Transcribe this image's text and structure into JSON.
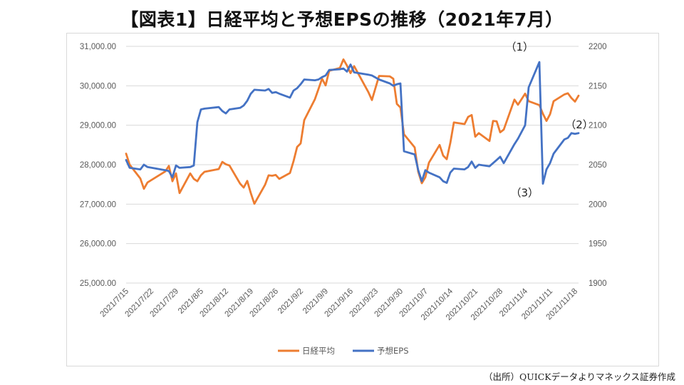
{
  "title": "【図表1】日経平均と予想EPSの推移（2021年7月）",
  "source": "（出所）QUICKデータよりマネックス証券作成",
  "chart_data": {
    "type": "line",
    "y_left": {
      "min": 25000,
      "max": 31000,
      "ticks": [
        "25,000.00",
        "26,000.00",
        "27,000.00",
        "28,000.00",
        "29,000.00",
        "30,000.00",
        "31,000.00"
      ]
    },
    "y_right": {
      "min": 1900,
      "max": 2200,
      "ticks": [
        "1900",
        "1950",
        "2000",
        "2050",
        "2100",
        "2150",
        "2200"
      ]
    },
    "x_ticks": [
      "2021/7/15",
      "2021/7/22",
      "2021/7/29",
      "2021/8/5",
      "2021/8/12",
      "2021/8/19",
      "2021/8/26",
      "2021/9/2",
      "2021/9/9",
      "2021/9/16",
      "2021/9/23",
      "2021/9/30",
      "2021/10/7",
      "2021/10/14",
      "2021/10/21",
      "2021/10/28",
      "2021/11/4",
      "2021/11/11",
      "2021/11/18"
    ],
    "grid": "horizontal",
    "legend_position": "bottom",
    "colors": {
      "nikkei": "#ED7D31",
      "eps": "#4472C4",
      "grid": "#d9d9d9",
      "text": "#595959"
    },
    "series": [
      {
        "name": "日経平均",
        "axis": "left",
        "points": [
          [
            "2021/7/15",
            28280
          ],
          [
            "2021/7/16",
            28000
          ],
          [
            "2021/7/19",
            27650
          ],
          [
            "2021/7/20",
            27390
          ],
          [
            "2021/7/21",
            27550
          ],
          [
            "2021/7/26",
            27830
          ],
          [
            "2021/7/27",
            27970
          ],
          [
            "2021/7/28",
            27580
          ],
          [
            "2021/7/29",
            27780
          ],
          [
            "2021/7/30",
            27280
          ],
          [
            "2021/8/2",
            27780
          ],
          [
            "2021/8/3",
            27640
          ],
          [
            "2021/8/4",
            27580
          ],
          [
            "2021/8/5",
            27730
          ],
          [
            "2021/8/6",
            27820
          ],
          [
            "2021/8/10",
            27890
          ],
          [
            "2021/8/11",
            28070
          ],
          [
            "2021/8/12",
            28010
          ],
          [
            "2021/8/13",
            27980
          ],
          [
            "2021/8/16",
            27520
          ],
          [
            "2021/8/17",
            27420
          ],
          [
            "2021/8/18",
            27590
          ],
          [
            "2021/8/19",
            27280
          ],
          [
            "2021/8/20",
            27010
          ],
          [
            "2021/8/23",
            27490
          ],
          [
            "2021/8/24",
            27730
          ],
          [
            "2021/8/25",
            27720
          ],
          [
            "2021/8/26",
            27740
          ],
          [
            "2021/8/27",
            27640
          ],
          [
            "2021/8/30",
            27790
          ],
          [
            "2021/8/31",
            28090
          ],
          [
            "2021/9/1",
            28450
          ],
          [
            "2021/9/2",
            28540
          ],
          [
            "2021/9/3",
            29130
          ],
          [
            "2021/9/6",
            29660
          ],
          [
            "2021/9/7",
            29920
          ],
          [
            "2021/9/8",
            30180
          ],
          [
            "2021/9/9",
            30010
          ],
          [
            "2021/9/10",
            30380
          ],
          [
            "2021/9/13",
            30450
          ],
          [
            "2021/9/14",
            30670
          ],
          [
            "2021/9/15",
            30510
          ],
          [
            "2021/9/16",
            30320
          ],
          [
            "2021/9/17",
            30500
          ],
          [
            "2021/9/21",
            29840
          ],
          [
            "2021/9/22",
            29640
          ],
          [
            "2021/9/24",
            30250
          ],
          [
            "2021/9/27",
            30240
          ],
          [
            "2021/9/28",
            30180
          ],
          [
            "2021/9/29",
            29540
          ],
          [
            "2021/9/30",
            29450
          ],
          [
            "2021/10/1",
            28770
          ],
          [
            "2021/10/4",
            28440
          ],
          [
            "2021/10/5",
            27820
          ],
          [
            "2021/10/6",
            27530
          ],
          [
            "2021/10/7",
            27680
          ],
          [
            "2021/10/8",
            28050
          ],
          [
            "2021/10/11",
            28500
          ],
          [
            "2021/10/12",
            28230
          ],
          [
            "2021/10/13",
            28140
          ],
          [
            "2021/10/14",
            28550
          ],
          [
            "2021/10/15",
            29070
          ],
          [
            "2021/10/18",
            29030
          ],
          [
            "2021/10/19",
            29210
          ],
          [
            "2021/10/20",
            29260
          ],
          [
            "2021/10/21",
            28710
          ],
          [
            "2021/10/22",
            28800
          ],
          [
            "2021/10/25",
            28600
          ],
          [
            "2021/10/26",
            29110
          ],
          [
            "2021/10/27",
            29100
          ],
          [
            "2021/10/28",
            28820
          ],
          [
            "2021/10/29",
            28890
          ],
          [
            "2021/11/1",
            29650
          ],
          [
            "2021/11/2",
            29520
          ],
          [
            "2021/11/4",
            29800
          ],
          [
            "2021/11/5",
            29610
          ],
          [
            "2021/11/8",
            29510
          ],
          [
            "2021/11/9",
            29290
          ],
          [
            "2021/11/10",
            29110
          ],
          [
            "2021/11/11",
            29280
          ],
          [
            "2021/11/12",
            29610
          ],
          [
            "2021/11/15",
            29780
          ],
          [
            "2021/11/16",
            29810
          ],
          [
            "2021/11/17",
            29690
          ],
          [
            "2021/11/18",
            29600
          ],
          [
            "2021/11/19",
            29750
          ]
        ]
      },
      {
        "name": "予想EPS",
        "axis": "right",
        "points": [
          [
            "2021/7/15",
            2056
          ],
          [
            "2021/7/16",
            2046
          ],
          [
            "2021/7/19",
            2044
          ],
          [
            "2021/7/20",
            2050
          ],
          [
            "2021/7/21",
            2047
          ],
          [
            "2021/7/26",
            2043
          ],
          [
            "2021/7/27",
            2042
          ],
          [
            "2021/7/28",
            2034
          ],
          [
            "2021/7/29",
            2049
          ],
          [
            "2021/7/30",
            2046
          ],
          [
            "2021/8/2",
            2047
          ],
          [
            "2021/8/3",
            2049
          ],
          [
            "2021/8/4",
            2104
          ],
          [
            "2021/8/5",
            2120
          ],
          [
            "2021/8/6",
            2121
          ],
          [
            "2021/8/10",
            2123
          ],
          [
            "2021/8/11",
            2118
          ],
          [
            "2021/8/12",
            2115
          ],
          [
            "2021/8/13",
            2120
          ],
          [
            "2021/8/16",
            2122
          ],
          [
            "2021/8/17",
            2125
          ],
          [
            "2021/8/18",
            2131
          ],
          [
            "2021/8/19",
            2140
          ],
          [
            "2021/8/20",
            2145
          ],
          [
            "2021/8/23",
            2144
          ],
          [
            "2021/8/24",
            2146
          ],
          [
            "2021/8/25",
            2141
          ],
          [
            "2021/8/26",
            2142
          ],
          [
            "2021/8/27",
            2140
          ],
          [
            "2021/8/30",
            2135
          ],
          [
            "2021/8/31",
            2144
          ],
          [
            "2021/9/1",
            2147
          ],
          [
            "2021/9/2",
            2152
          ],
          [
            "2021/9/3",
            2158
          ],
          [
            "2021/9/6",
            2157
          ],
          [
            "2021/9/7",
            2158
          ],
          [
            "2021/9/8",
            2161
          ],
          [
            "2021/9/9",
            2163
          ],
          [
            "2021/9/10",
            2170
          ],
          [
            "2021/9/13",
            2171
          ],
          [
            "2021/9/14",
            2172
          ],
          [
            "2021/9/15",
            2168
          ],
          [
            "2021/9/16",
            2177
          ],
          [
            "2021/9/17",
            2167
          ],
          [
            "2021/9/21",
            2164
          ],
          [
            "2021/9/22",
            2163
          ],
          [
            "2021/9/24",
            2158
          ],
          [
            "2021/9/27",
            2153
          ],
          [
            "2021/9/28",
            2150
          ],
          [
            "2021/9/29",
            2152
          ],
          [
            "2021/9/30",
            2153
          ],
          [
            "2021/10/1",
            2067
          ],
          [
            "2021/10/4",
            2063
          ],
          [
            "2021/10/5",
            2043
          ],
          [
            "2021/10/6",
            2029
          ],
          [
            "2021/10/7",
            2043
          ],
          [
            "2021/10/8",
            2040
          ],
          [
            "2021/10/11",
            2034
          ],
          [
            "2021/10/12",
            2029
          ],
          [
            "2021/10/13",
            2027
          ],
          [
            "2021/10/14",
            2040
          ],
          [
            "2021/10/15",
            2045
          ],
          [
            "2021/10/18",
            2044
          ],
          [
            "2021/10/19",
            2047
          ],
          [
            "2021/10/20",
            2054
          ],
          [
            "2021/10/21",
            2046
          ],
          [
            "2021/10/22",
            2050
          ],
          [
            "2021/10/25",
            2048
          ],
          [
            "2021/10/26",
            2052
          ],
          [
            "2021/10/27",
            2056
          ],
          [
            "2021/10/28",
            2060
          ],
          [
            "2021/10/29",
            2052
          ],
          [
            "2021/11/1",
            2076
          ],
          [
            "2021/11/2",
            2083
          ],
          [
            "2021/11/4",
            2100
          ],
          [
            "2021/11/5",
            2148
          ],
          [
            "2021/11/8",
            2180
          ],
          [
            "2021/11/9",
            2026
          ],
          [
            "2021/11/10",
            2044
          ],
          [
            "2021/11/11",
            2052
          ],
          [
            "2021/11/12",
            2064
          ],
          [
            "2021/11/15",
            2082
          ],
          [
            "2021/11/16",
            2084
          ],
          [
            "2021/11/17",
            2090
          ],
          [
            "2021/11/18",
            2089
          ],
          [
            "2021/11/19",
            2090
          ]
        ]
      }
    ],
    "annotations": [
      {
        "text": "（1）",
        "x": "2021/11/8",
        "y": 2180,
        "axis": "right"
      },
      {
        "text": "（2）",
        "x": "2021/11/18",
        "y": 2089,
        "axis": "right"
      },
      {
        "text": "（3）",
        "x": "2021/11/9",
        "y": 2026,
        "axis": "right"
      }
    ]
  }
}
